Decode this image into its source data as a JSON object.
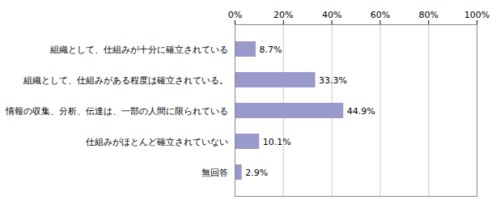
{
  "chart_data": {
    "type": "bar",
    "orientation": "horizontal",
    "categories": [
      "組織として、仕組みが十分に確立されている",
      "組織として、仕組みがある程度は確立されている。",
      "情報の収集、分析、伝達は、一部の人間に限られている",
      "仕組みがほとんど確立されていない",
      "無回答"
    ],
    "values": [
      8.7,
      33.3,
      44.9,
      10.1,
      2.9
    ],
    "value_labels": [
      "8.7%",
      "33.3%",
      "44.9%",
      "10.1%",
      "2.9%"
    ],
    "data_labels": true,
    "color": "#9999cc",
    "xlim": [
      0,
      100
    ],
    "xticks": [
      {
        "value": 0,
        "label": "0%"
      },
      {
        "value": 20,
        "label": "20%"
      },
      {
        "value": 40,
        "label": "40%"
      },
      {
        "value": 60,
        "label": "60%"
      },
      {
        "value": 80,
        "label": "80%"
      },
      {
        "value": 100,
        "label": "100%"
      }
    ],
    "grid": true
  }
}
